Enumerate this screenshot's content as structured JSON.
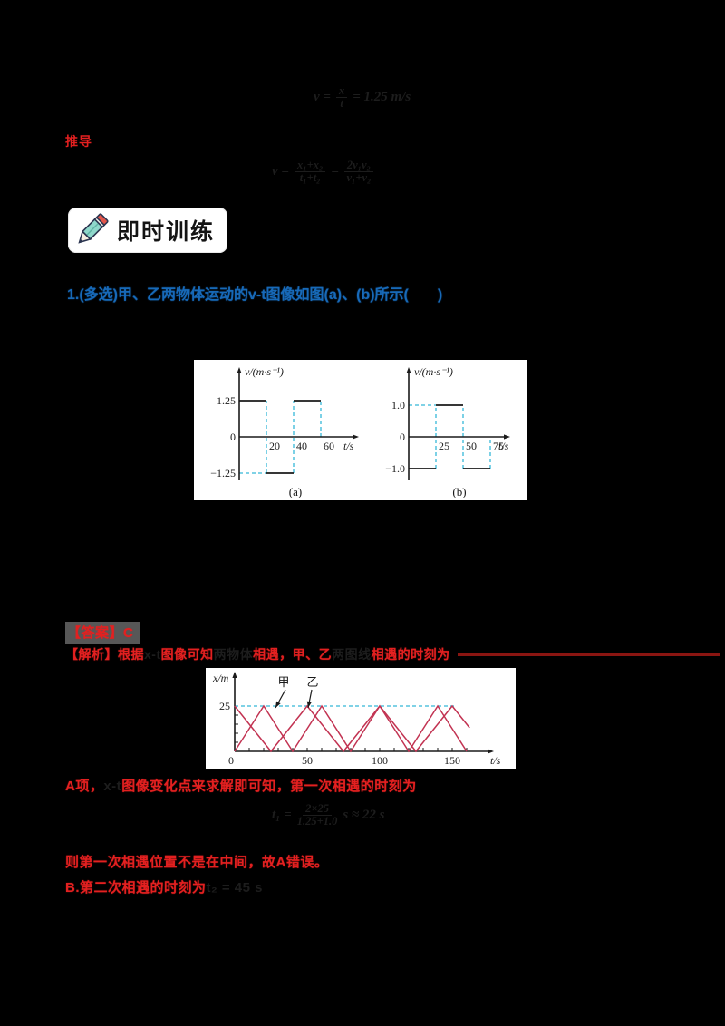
{
  "colors": {
    "background": "#000000",
    "red_text": "#e32020",
    "dark_red_line": "#8a1511",
    "blue_text": "#1769b8",
    "dark_formula": "#1d1d1d",
    "cyan_dash": "#35b8d8",
    "graph_curve": "#c23352",
    "answer_highlight": "#575757",
    "panel_bg": "#ffffff"
  },
  "formulas": {
    "f1": {
      "pre": "v =",
      "num": "x",
      "den": "t",
      "post": "= 1.25 m/s"
    },
    "f2": {
      "pre": "v =",
      "num1": "x₁+x₂",
      "den1": "t₁+t₂",
      "mid": "=",
      "num2": "2v₁v₂",
      "den2": "v₁+v₂",
      "post": ""
    },
    "f3": {
      "pre": "t₁ =",
      "num": "2×25",
      "den": "1.25+1.0",
      "post": "s ≈ 22 s"
    }
  },
  "section_label": "推导",
  "badge": {
    "label": "即时训练",
    "icon": "pencil-icon"
  },
  "question": {
    "text": "1.(多选)甲、乙两物体运动的v-t图像如图(a)、(b)所示(　　)"
  },
  "answer": {
    "label": "【答案】",
    "value": "C"
  },
  "analysis": {
    "spans": [
      {
        "text": "【解析】根据",
        "tone": "red"
      },
      {
        "text": "x-t",
        "tone": "dark"
      },
      {
        "text": "图像可知",
        "tone": "red"
      },
      {
        "text": "两物体",
        "tone": "dark"
      },
      {
        "text": "相遇，甲、乙",
        "tone": "red"
      },
      {
        "text": "两图线",
        "tone": "dark"
      },
      {
        "text": "相遇的时刻为",
        "tone": "red"
      }
    ]
  },
  "solution": {
    "lineA": {
      "spans": [
        {
          "text": "A项，",
          "tone": "red"
        },
        {
          "text": "x-t",
          "tone": "dark"
        },
        {
          "text": "图像变化点来求解即可知，第一次相遇的时刻为",
          "tone": "red"
        }
      ]
    },
    "lineB": "则第一次相遇位置不是在中间，故A错误。",
    "lineC": {
      "spans": [
        {
          "text": "B.第二次相遇的时刻为",
          "tone": "red"
        },
        {
          "text": "t₂ = 45 s",
          "tone": "dark"
        }
      ]
    }
  },
  "chart_data": [
    {
      "id": "a",
      "type": "line",
      "caption": "(a)",
      "ylabel": "v/(m·s⁻¹)",
      "xlabel": "t/s",
      "yticks": [
        {
          "v": 1.25,
          "label": "1.25"
        },
        {
          "v": 0,
          "label": "0"
        },
        {
          "v": -1.25,
          "label": "−1.25"
        }
      ],
      "xticks": [
        {
          "v": 20,
          "label": "20"
        },
        {
          "v": 40,
          "label": "40"
        },
        {
          "v": 60,
          "label": "60"
        }
      ],
      "xlim": [
        0,
        70
      ],
      "ylim": [
        -1.6,
        1.8
      ],
      "segments": [
        [
          0,
          1.25,
          20,
          1.25
        ],
        [
          20,
          -1.25,
          40,
          -1.25
        ],
        [
          40,
          1.25,
          60,
          1.25
        ]
      ],
      "guides": [
        [
          20,
          -1.25,
          20,
          1.25
        ],
        [
          40,
          -1.25,
          40,
          1.25
        ],
        [
          60,
          0,
          60,
          1.25
        ],
        [
          0,
          -1.25,
          20,
          -1.25
        ]
      ]
    },
    {
      "id": "b",
      "type": "line",
      "caption": "(b)",
      "ylabel": "v/(m·s⁻¹)",
      "xlabel": "t/s",
      "yticks": [
        {
          "v": 1.0,
          "label": "1.0"
        },
        {
          "v": 0,
          "label": "0"
        },
        {
          "v": -1.0,
          "label": "−1.0"
        }
      ],
      "xticks": [
        {
          "v": 25,
          "label": "25"
        },
        {
          "v": 50,
          "label": "50"
        },
        {
          "v": 75,
          "label": "75"
        }
      ],
      "xlim": [
        0,
        85
      ],
      "ylim": [
        -1.5,
        1.8
      ],
      "segments": [
        [
          0,
          -1.0,
          25,
          -1.0
        ],
        [
          25,
          1.0,
          50,
          1.0
        ],
        [
          50,
          -1.0,
          75,
          -1.0
        ]
      ],
      "guides": [
        [
          0,
          1.0,
          25,
          1.0
        ],
        [
          25,
          -1.0,
          25,
          1.0
        ],
        [
          50,
          -1.0,
          50,
          1.0
        ],
        [
          75,
          -1.0,
          75,
          0
        ]
      ]
    },
    {
      "id": "xt",
      "type": "line",
      "ylabel": "x/m",
      "xlabel": "t/s",
      "yticks": [
        {
          "v": 25,
          "label": "25"
        }
      ],
      "xticks": [
        {
          "v": 0,
          "label": "0"
        },
        {
          "v": 50,
          "label": "50"
        },
        {
          "v": 100,
          "label": "100"
        },
        {
          "v": 150,
          "label": "150"
        }
      ],
      "minor_step": 10,
      "xlim": [
        0,
        170
      ],
      "ylim": [
        0,
        30
      ],
      "series": [
        {
          "name": "甲",
          "points": [
            [
              0,
              0
            ],
            [
              20,
              25
            ],
            [
              40,
              0
            ],
            [
              60,
              25
            ],
            [
              80,
              0
            ],
            [
              100,
              25
            ],
            [
              120,
              0
            ],
            [
              140,
              25
            ],
            [
              160,
              0
            ]
          ]
        },
        {
          "name": "乙",
          "points": [
            [
              0,
              25
            ],
            [
              25,
              0
            ],
            [
              50,
              25
            ],
            [
              75,
              0
            ],
            [
              100,
              25
            ],
            [
              125,
              0
            ],
            [
              150,
              25
            ],
            [
              162,
              13
            ]
          ]
        }
      ],
      "guides": [
        [
          0,
          25,
          153,
          25
        ]
      ]
    }
  ]
}
